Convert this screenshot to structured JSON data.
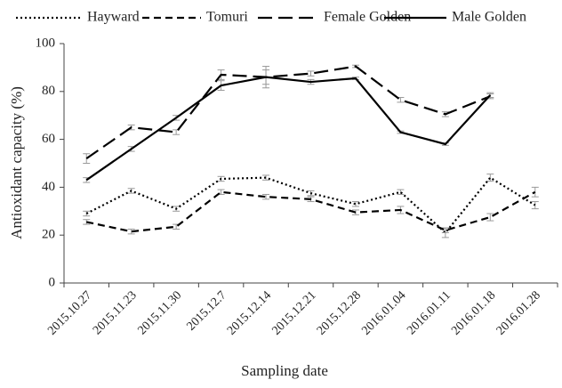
{
  "chart_data": {
    "type": "line",
    "x_label": "Sampling date",
    "y_label": "Antioxidant capacity (%)",
    "categories": [
      "2015.10.27",
      "2015.11.23",
      "2015.11.30",
      "2015.12.7",
      "2015.12.14",
      "2015.12.21",
      "2015.12.28",
      "2016.01.04",
      "2016.01.11",
      "2016.01.18",
      "2016.01.28"
    ],
    "series": [
      {
        "name": "Hayward",
        "color": "#000000",
        "dash": "dotted",
        "values": [
          29,
          38.5,
          31,
          43.5,
          44,
          37.5,
          33,
          38,
          21,
          44,
          32.5
        ],
        "errors": [
          1,
          1,
          1,
          1,
          1,
          1,
          1,
          1,
          2,
          1.5,
          1.5
        ]
      },
      {
        "name": "Tomuri",
        "color": "#000000",
        "dash": "short",
        "values": [
          25.5,
          21.5,
          23.5,
          38,
          36,
          35,
          29.5,
          30.5,
          22,
          27.5,
          38
        ],
        "errors": [
          1,
          1,
          1,
          1,
          1,
          1,
          1,
          1.5,
          1,
          1.5,
          2
        ]
      },
      {
        "name": "Female Golden",
        "color": "#000000",
        "dash": "long",
        "values": [
          52,
          65,
          63,
          87,
          86,
          87.5,
          90.5,
          76.5,
          70.5,
          78,
          null
        ],
        "errors": [
          2,
          1,
          1,
          2,
          4.5,
          1,
          0.5,
          1,
          1,
          1,
          null
        ]
      },
      {
        "name": "Male Golden",
        "color": "#000000",
        "dash": "solid",
        "values": [
          43,
          56,
          69,
          82.5,
          86,
          84,
          85.5,
          63,
          58,
          78.5,
          null
        ],
        "errors": [
          1,
          1,
          1,
          2,
          3,
          1,
          0.5,
          0.5,
          0.5,
          1,
          null
        ]
      }
    ],
    "ylim": [
      0,
      100
    ],
    "yticks": [
      0,
      20,
      40,
      60,
      80,
      100
    ],
    "grid": false,
    "legend": "top"
  }
}
